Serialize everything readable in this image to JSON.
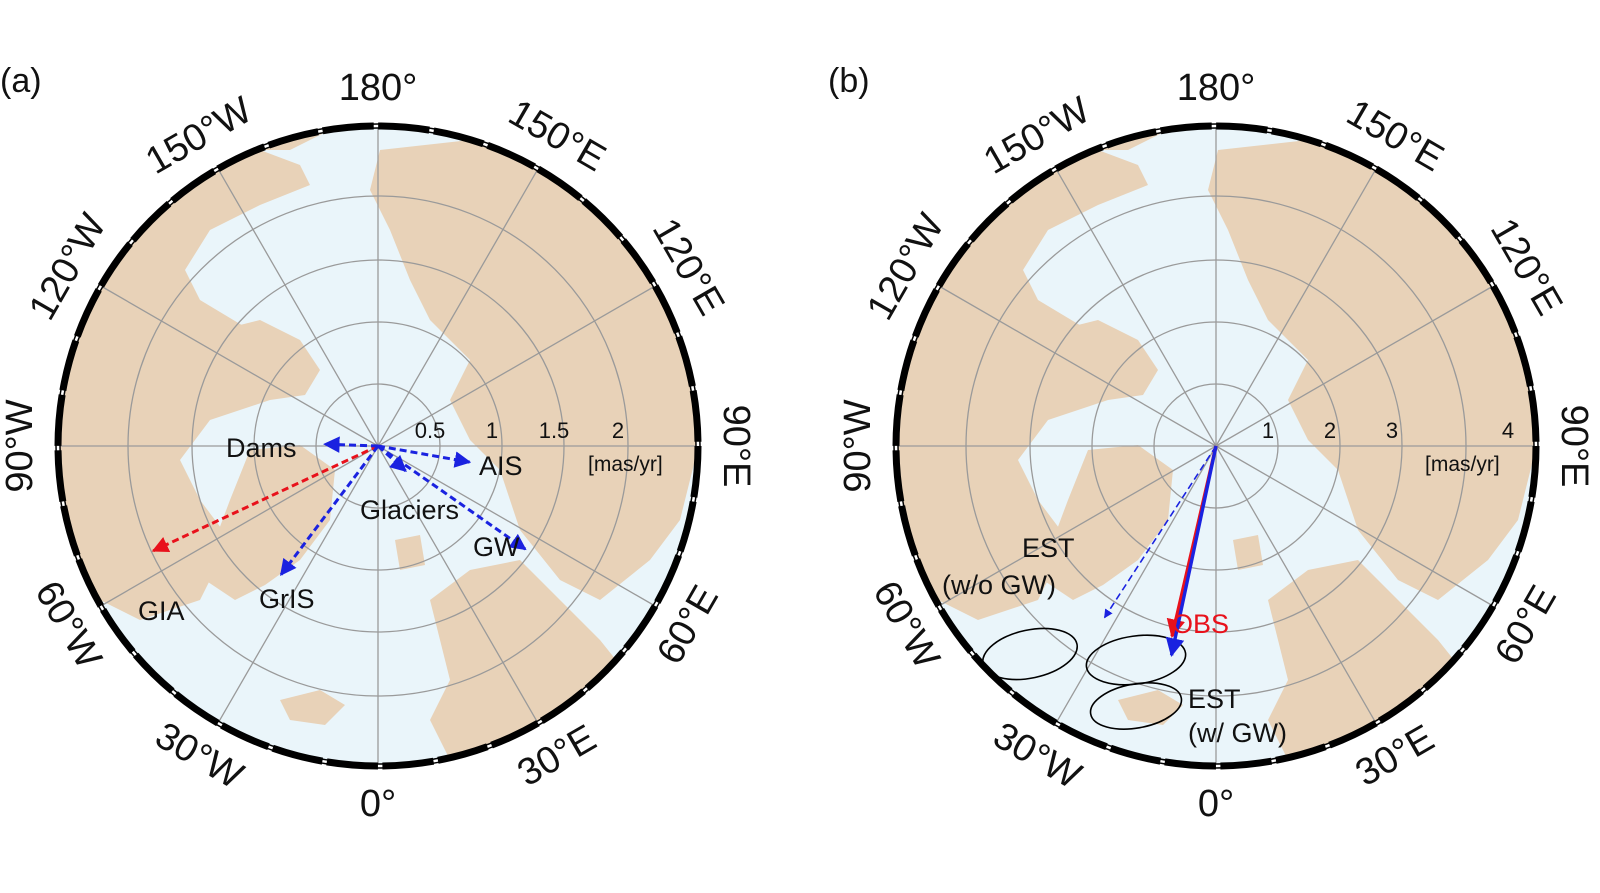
{
  "colors": {
    "ocean": "#eaf5fa",
    "land": "#e8d2b8",
    "grid": "#9a9a9a",
    "frame": "#000000",
    "red": "#e8111b",
    "blue": "#1a22e0"
  },
  "longitude_labels": [
    {
      "text": "180°",
      "lon": 180
    },
    {
      "text": "150°E",
      "lon": 150
    },
    {
      "text": "120°E",
      "lon": 120
    },
    {
      "text": "90°E",
      "lon": 90
    },
    {
      "text": "60°E",
      "lon": 60
    },
    {
      "text": "30°E",
      "lon": 30
    },
    {
      "text": "0°",
      "lon": 0
    },
    {
      "text": "30°W",
      "lon": -30
    },
    {
      "text": "60°W",
      "lon": -60
    },
    {
      "text": "90°W",
      "lon": -90
    },
    {
      "text": "120°W",
      "lon": -120
    },
    {
      "text": "150°W",
      "lon": -150
    }
  ],
  "panels": [
    {
      "id": "a",
      "label": "(a)",
      "rate_max": 2.5,
      "unit": "[mas/yr]",
      "ring_labels": [
        "0.5",
        "1",
        "1.5",
        "2"
      ],
      "ring_values": [
        0.5,
        1,
        1.5,
        2
      ],
      "vectors": [
        {
          "name": "GIA",
          "color": "red",
          "dashed": true,
          "lon": -65,
          "rate": 2.0
        },
        {
          "name": "GrIS",
          "color": "blue",
          "dashed": true,
          "lon": -37,
          "rate": 1.3
        },
        {
          "name": "Dams",
          "color": "blue",
          "dashed": true,
          "lon": -92,
          "rate": 0.43
        },
        {
          "name": "AIS",
          "color": "blue",
          "dashed": true,
          "lon": 80,
          "rate": 0.75
        },
        {
          "name": "Glaciers",
          "color": "blue",
          "dashed": true,
          "lon": 48,
          "rate": 0.3
        },
        {
          "name": "GW",
          "color": "blue",
          "dashed": true,
          "lon": 55,
          "rate": 1.45
        }
      ],
      "labels": [
        "Dams",
        "AIS",
        "Glaciers",
        "GW",
        "GIA",
        "GrIS"
      ]
    },
    {
      "id": "b",
      "label": "(b)",
      "rate_max": 4,
      "unit": "[mas/yr]",
      "ring_labels": [
        "1",
        "2",
        "3",
        "4"
      ],
      "ring_values": [
        1,
        2,
        3,
        4
      ],
      "vectors": [
        {
          "name": "EST (w/o GW)",
          "color": "blue",
          "dashed": true,
          "lon": -33,
          "rate": 3.3
        },
        {
          "name": "OBS",
          "color": "red",
          "dashed": false,
          "lon": -13,
          "rate": 3.15
        },
        {
          "name": "EST (w/ GW)",
          "color": "blue",
          "dashed": false,
          "lon": -12,
          "rate": 3.45
        }
      ],
      "labels": [
        "EST",
        "(w/o GW)",
        "OBS",
        "EST",
        "(w/ GW)"
      ]
    }
  ]
}
